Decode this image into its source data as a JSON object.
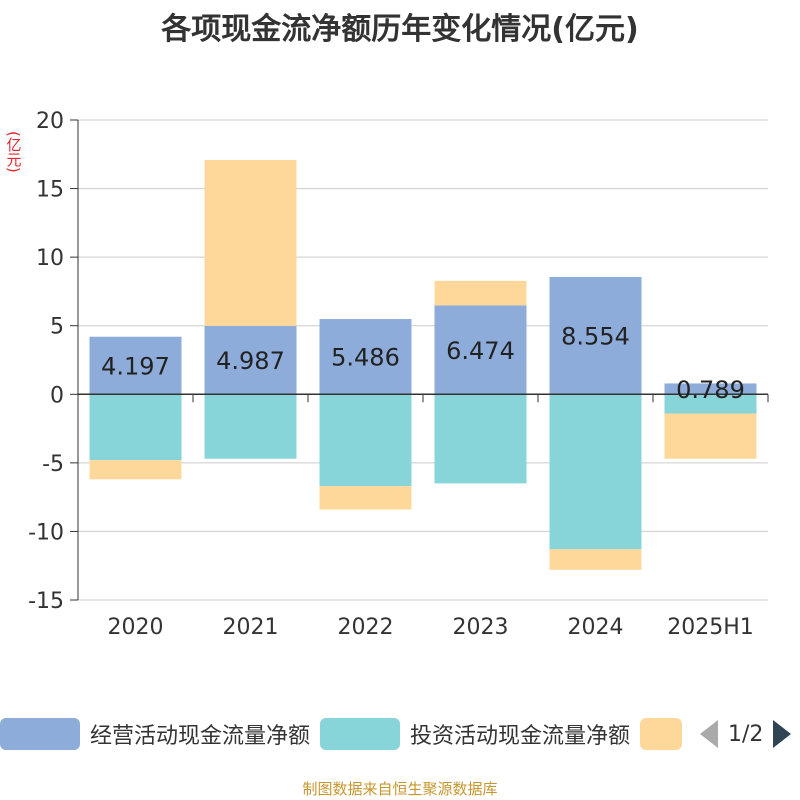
{
  "title": "各项现金流净额历年变化情况(亿元)",
  "y_unit": "(亿元)",
  "footer": "制图数据来自恒生聚源数据库",
  "pager": {
    "text": "1/2"
  },
  "chart_data": {
    "type": "bar",
    "stacked": true,
    "categories": [
      "2020",
      "2021",
      "2022",
      "2023",
      "2024",
      "2025H1"
    ],
    "ylim": [
      -15,
      20
    ],
    "yticks": [
      20,
      15,
      10,
      5,
      0,
      -5,
      -10,
      -15
    ],
    "grid": true,
    "legend_position": "bottom",
    "series": [
      {
        "name": "经营活动现金流量净额",
        "color": "#8eacd9",
        "values": [
          4.197,
          4.987,
          5.486,
          6.474,
          8.554,
          0.789
        ],
        "labels": [
          "4.197",
          "4.987",
          "5.486",
          "6.474",
          "8.554",
          "0.789"
        ]
      },
      {
        "name": "投资活动现金流量净额",
        "color": "#87d5d8",
        "values": [
          -4.8,
          -4.7,
          -6.7,
          -6.5,
          -11.3,
          -1.4
        ]
      },
      {
        "name": "",
        "color": "#fed89a",
        "values": [
          -1.4,
          12.1,
          -1.7,
          1.8,
          -1.5,
          -3.3
        ]
      }
    ]
  }
}
